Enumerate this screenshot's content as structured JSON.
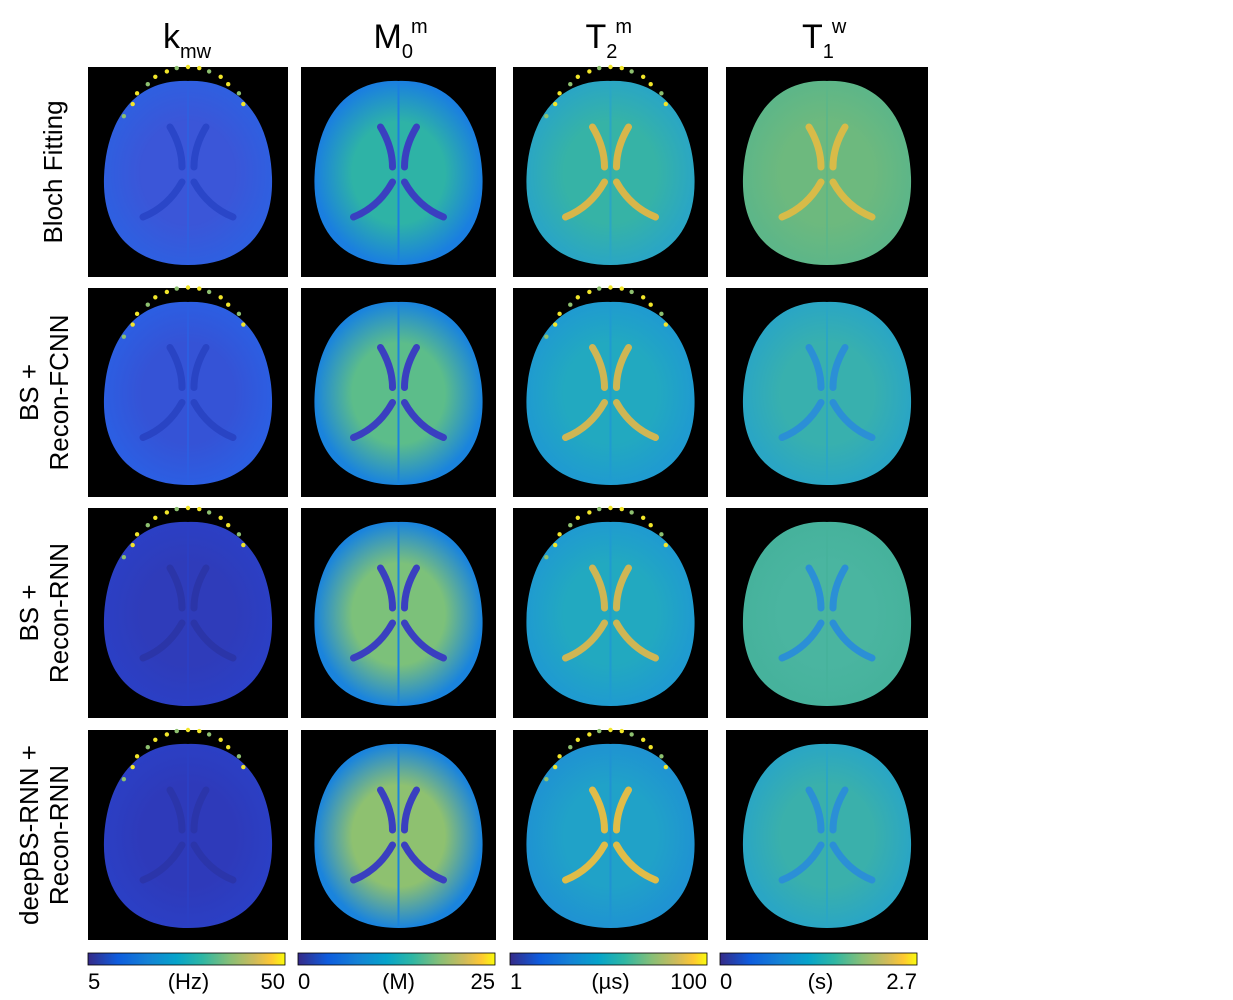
{
  "columns": [
    {
      "symbol": "k",
      "sub": "mw"
    },
    {
      "symbol": "M",
      "sub": "0",
      "sup": "m"
    },
    {
      "symbol": "T",
      "sub": "2",
      "sup": "m"
    },
    {
      "symbol": "T",
      "sub": "1",
      "sup": "w"
    }
  ],
  "rows": [
    [
      "Bloch Fitting"
    ],
    [
      "BS +",
      "Recon-FCNN"
    ],
    [
      "BS +",
      "Recon-RNN"
    ],
    [
      "deepBS-RNN +",
      "Recon-RNN"
    ]
  ],
  "colorbars": [
    {
      "min": 5,
      "unit": "(Hz)",
      "max": 50
    },
    {
      "min": 0,
      "unit": "(M)",
      "max": 25
    },
    {
      "min": 1,
      "unit": "(µs)",
      "max": 100
    },
    {
      "min": 0,
      "unit": "(s)",
      "max": 2.7
    }
  ]
}
